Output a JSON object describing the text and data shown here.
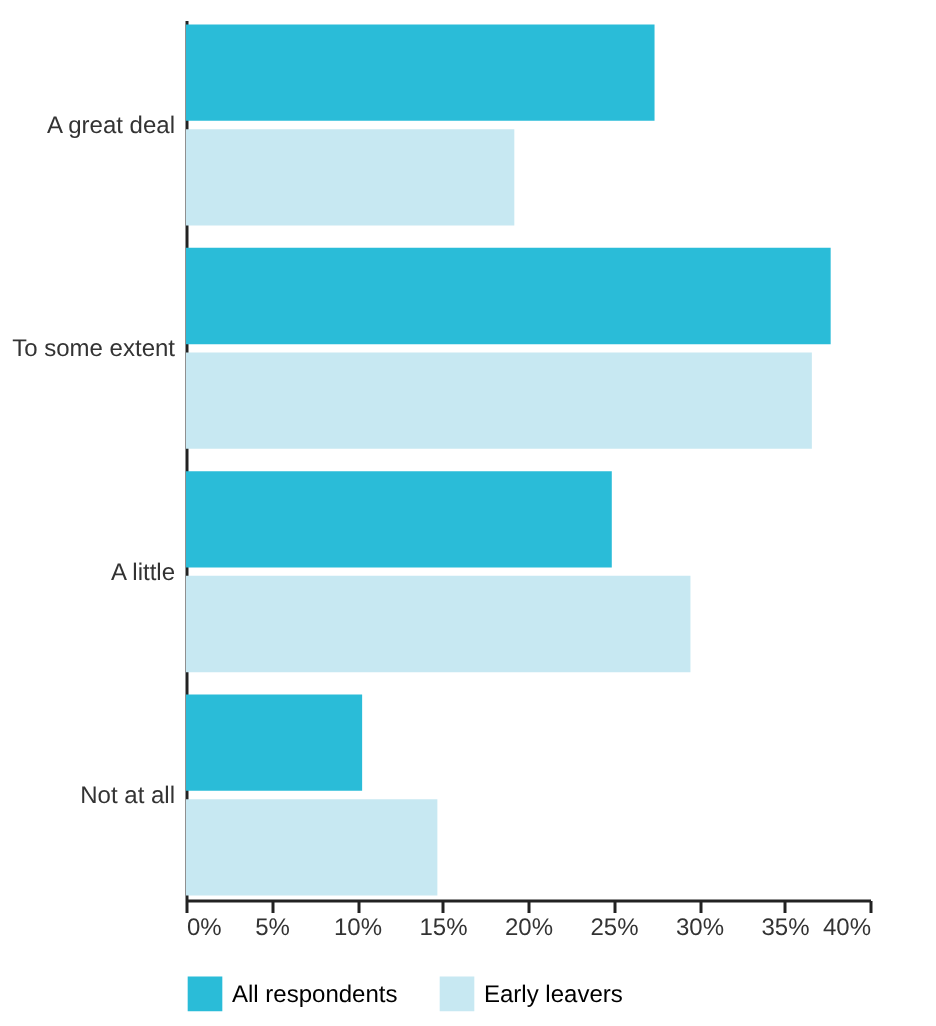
{
  "chart_data": {
    "type": "bar",
    "orientation": "horizontal",
    "categories": [
      "A great deal",
      "To some extent",
      "A little",
      "Not at all"
    ],
    "series": [
      {
        "name": "All respondents",
        "color": "#2abcd8",
        "values": [
          27.4,
          37.7,
          24.9,
          10.3
        ]
      },
      {
        "name": "Early leavers",
        "color": "#c7e8f2",
        "values": [
          19.2,
          36.6,
          29.5,
          14.7
        ]
      }
    ],
    "xlim": [
      0,
      40
    ],
    "xticks": [
      {
        "value": 0,
        "label": "0%"
      },
      {
        "value": 5,
        "label": "5%"
      },
      {
        "value": 10,
        "label": "10%"
      },
      {
        "value": 15,
        "label": "15%"
      },
      {
        "value": 20,
        "label": "20%"
      },
      {
        "value": 25,
        "label": "25%"
      },
      {
        "value": 30,
        "label": "30%"
      },
      {
        "value": 35,
        "label": "35%"
      },
      {
        "value": 40,
        "label": "40%"
      }
    ],
    "grid": false,
    "legend": "bottom"
  }
}
